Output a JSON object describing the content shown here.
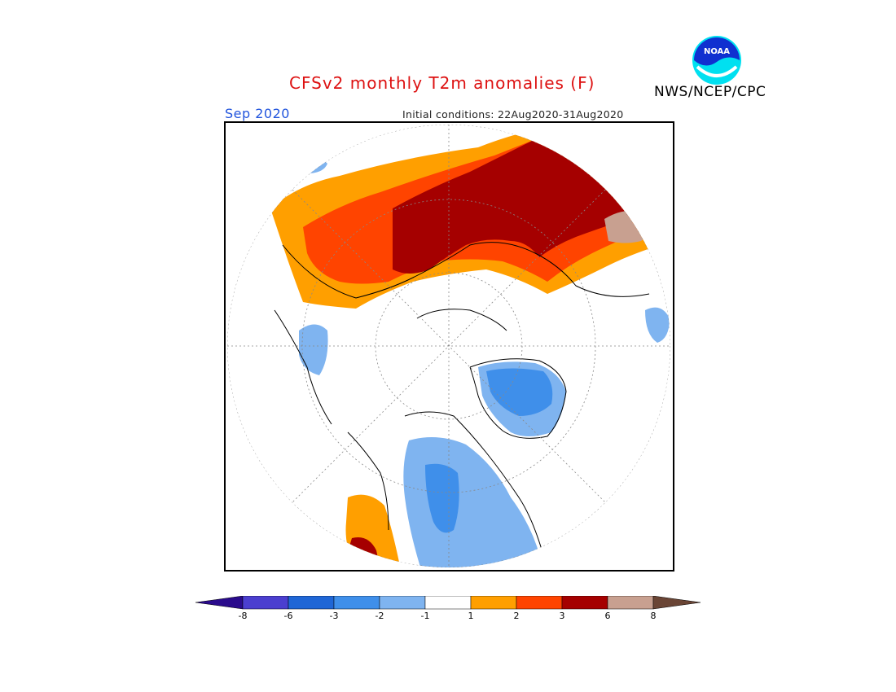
{
  "header": {
    "title": "CFSv2 monthly T2m anomalies (F)",
    "org": "NWS/NCEP/CPC",
    "logo_text": "NOAA"
  },
  "map": {
    "month": "Sep 2020",
    "initial_conditions": "Initial conditions: 22Aug2020-31Aug2020",
    "projection": "north-polar-stereographic"
  },
  "colorbar": {
    "ticks": [
      "-8",
      "-6",
      "-3",
      "-2",
      "-1",
      "1",
      "2",
      "3",
      "6",
      "8"
    ],
    "colors": {
      "lt_m8": "#2a0b8c",
      "m8_m6": "#4b3fcf",
      "m6_m3": "#1f66d6",
      "m3_m2": "#3f8fea",
      "m2_m1": "#7fb4f0",
      "m1_p1": "#ffffff",
      "p1_p2": "#ff9f00",
      "p2_p3": "#ff4400",
      "p3_p6": "#a50000",
      "p6_p8": "#c8a090",
      "gt_p8": "#6a4535"
    }
  }
}
